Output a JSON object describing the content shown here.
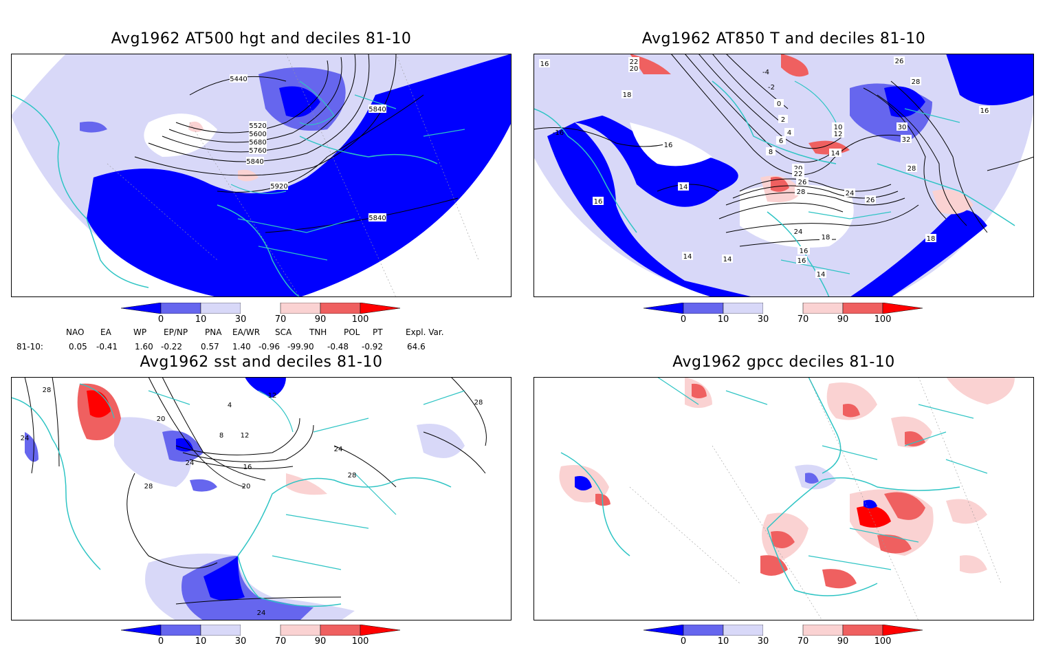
{
  "panels": [
    {
      "title": "Avg1962 AT500 hgt and deciles 81-10",
      "contour_labels": [
        "5440",
        "5520",
        "5600",
        "5680",
        "5760",
        "5840",
        "5920",
        "5840",
        "5840"
      ]
    },
    {
      "title": "Avg1962 AT850 T and deciles 81-10",
      "contour_labels": [
        "14",
        "16",
        "18",
        "20",
        "22",
        "24",
        "26",
        "28",
        "30",
        "32",
        "0",
        "2",
        "4",
        "6",
        "8",
        "10",
        "12",
        "14",
        "16",
        "18",
        "20",
        "22",
        "24",
        "26",
        "28",
        "14",
        "14",
        "14",
        "16",
        "18",
        "16",
        "16",
        "26",
        "28",
        "16",
        "-4",
        "-2",
        "-16"
      ]
    },
    {
      "title": "Avg1962 sst and deciles 81-10",
      "contour_labels": [
        "28",
        "24",
        "28",
        "20",
        "4",
        "8",
        "12",
        "16",
        "20",
        "24",
        "24",
        "28",
        "28",
        "24",
        "12"
      ]
    },
    {
      "title": "Avg1962 gpcc deciles 81-10",
      "contour_labels": []
    }
  ],
  "colorbar": {
    "ticks": [
      "0",
      "10",
      "30",
      "70",
      "90",
      "100"
    ],
    "colors": [
      "#0000ff",
      "#6666ee",
      "#d8d8f8",
      "#ffffff",
      "#fad2d2",
      "#ef6060",
      "#ff0000"
    ]
  },
  "indices": {
    "row_label": "81-10:",
    "headers": [
      "NAO",
      "EA",
      "WP",
      "EP/NP",
      "PNA",
      "EA/WR",
      "SCA",
      "TNH",
      "POL",
      "PT",
      "Expl. Var."
    ],
    "values": [
      "0.05",
      "-0.41",
      "1.60",
      "-0.22",
      "0.57",
      "1.40",
      "-0.96",
      "-99.90",
      "-0.48",
      "-0.92",
      "64.6"
    ]
  },
  "map_colors": {
    "coast": "#2ec4c4",
    "deep_blue": "#0000ff",
    "mid_blue": "#6666ee",
    "light_blue": "#d8d8f8",
    "light_red": "#fad2d2",
    "mid_red": "#ef6060",
    "red": "#ff0000"
  }
}
